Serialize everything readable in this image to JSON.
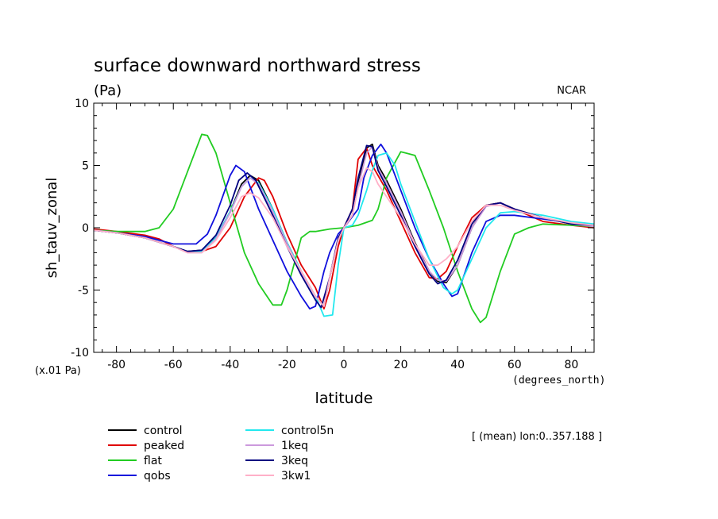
{
  "chart_data": {
    "type": "line",
    "title": "surface downward northward stress",
    "subtitle": "(Pa)",
    "credit": "NCAR",
    "xlabel": "latitude",
    "xunits": "(degrees_north)",
    "ylabel": "sh_tauv_zonal",
    "yunits": "(x.01 Pa)",
    "annotation": "[ (mean) lon:0..357.188 ]",
    "xlim": [
      -88,
      88
    ],
    "ylim": [
      -10,
      10
    ],
    "xticks": [
      -80,
      -60,
      -40,
      -20,
      0,
      20,
      40,
      60,
      80
    ],
    "yticks": [
      -10,
      -5,
      0,
      5,
      10
    ],
    "xtick_labels": [
      "-80",
      "-60",
      "-40",
      "-20",
      "0",
      "20",
      "40",
      "60",
      "80"
    ],
    "ytick_labels": [
      "-10",
      "-5",
      "0",
      "5",
      "10"
    ],
    "series": [
      {
        "name": "control",
        "color": "#000000",
        "x": [
          -88,
          -80,
          -70,
          -60,
          -55,
          -50,
          -45,
          -40,
          -36,
          -33,
          -30,
          -25,
          -20,
          -15,
          -10,
          -7,
          -5,
          -2,
          0,
          3,
          5,
          8,
          10,
          12,
          15,
          20,
          25,
          30,
          33,
          36,
          40,
          45,
          50,
          55,
          60,
          70,
          80,
          88
        ],
        "y": [
          -0.2,
          -0.4,
          -0.8,
          -1.5,
          -1.9,
          -1.8,
          -0.8,
          1.3,
          3.5,
          4.2,
          3.8,
          1.5,
          -1.2,
          -3.5,
          -5.5,
          -6.3,
          -4,
          -1,
          0,
          1,
          3.5,
          6.4,
          6.7,
          5,
          3.8,
          1.5,
          -1.2,
          -3.5,
          -4.3,
          -4.4,
          -3,
          0,
          1.8,
          2,
          1.5,
          0.8,
          0.3,
          0.2
        ]
      },
      {
        "name": "peaked",
        "color": "#e00000",
        "x": [
          -88,
          -80,
          -70,
          -65,
          -60,
          -55,
          -50,
          -45,
          -40,
          -35,
          -30,
          -28,
          -25,
          -20,
          -15,
          -10,
          -7,
          -5,
          -2,
          0,
          3,
          5,
          8,
          10,
          15,
          20,
          25,
          30,
          33,
          36,
          40,
          45,
          50,
          55,
          60,
          70,
          80,
          88
        ],
        "y": [
          -0.1,
          -0.3,
          -0.6,
          -0.9,
          -1.5,
          -1.9,
          -1.9,
          -1.5,
          0,
          2.5,
          4,
          3.8,
          2.5,
          -0.5,
          -3,
          -4.8,
          -6.5,
          -5,
          -1.5,
          0,
          1.5,
          5.5,
          6.4,
          5,
          3,
          0.5,
          -2,
          -4,
          -4.1,
          -3.5,
          -1.5,
          0.8,
          1.8,
          2,
          1.5,
          0.5,
          0.2,
          0
        ]
      },
      {
        "name": "flat",
        "color": "#22cc22",
        "x": [
          -88,
          -80,
          -75,
          -70,
          -65,
          -60,
          -55,
          -50,
          -48,
          -45,
          -40,
          -35,
          -30,
          -25,
          -22,
          -20,
          -15,
          -12,
          -10,
          -5,
          0,
          5,
          10,
          12,
          15,
          20,
          25,
          30,
          35,
          40,
          45,
          48,
          50,
          55,
          60,
          65,
          70,
          80,
          88
        ],
        "y": [
          -0.2,
          -0.3,
          -0.3,
          -0.3,
          0,
          1.5,
          4.5,
          7.5,
          7.4,
          6,
          2,
          -2,
          -4.5,
          -6.2,
          -6.2,
          -5,
          -0.8,
          -0.3,
          -0.3,
          -0.1,
          0,
          0.2,
          0.6,
          1.5,
          4,
          6.1,
          5.8,
          3,
          0,
          -3.5,
          -6.5,
          -7.6,
          -7.2,
          -3.5,
          -0.5,
          0,
          0.3,
          0.2,
          0.1
        ]
      },
      {
        "name": "qobs",
        "color": "#1010dd",
        "x": [
          -88,
          -80,
          -70,
          -60,
          -52,
          -48,
          -45,
          -40,
          -38,
          -35,
          -30,
          -25,
          -20,
          -15,
          -12,
          -10,
          -7,
          -5,
          -2,
          0,
          5,
          7,
          10,
          13,
          15,
          20,
          25,
          30,
          35,
          38,
          40,
          45,
          50,
          55,
          60,
          70,
          80,
          88
        ],
        "y": [
          -0.2,
          -0.4,
          -0.7,
          -1.3,
          -1.3,
          -0.5,
          1,
          4.2,
          5,
          4.5,
          1.5,
          -1,
          -3.5,
          -5.5,
          -6.5,
          -6.3,
          -3.5,
          -2,
          -0.5,
          0,
          1.5,
          4,
          5.8,
          6.7,
          6,
          3,
          0,
          -2.5,
          -4.5,
          -5.5,
          -5.3,
          -2,
          0.5,
          1,
          1,
          0.7,
          0.4,
          0.2
        ]
      },
      {
        "name": "control5n",
        "color": "#22e8ee",
        "x": [
          -88,
          -80,
          -70,
          -60,
          -55,
          -50,
          -45,
          -40,
          -36,
          -33,
          -30,
          -25,
          -20,
          -15,
          -10,
          -7,
          -4,
          -2,
          0,
          3,
          5,
          8,
          10,
          12,
          15,
          18,
          20,
          25,
          30,
          35,
          38,
          40,
          45,
          50,
          55,
          60,
          70,
          80,
          88
        ],
        "y": [
          -0.2,
          -0.4,
          -0.8,
          -1.5,
          -1.9,
          -1.9,
          -0.8,
          1.3,
          3.3,
          4,
          3.6,
          1.5,
          -1.2,
          -3.5,
          -5.5,
          -7.1,
          -7,
          -3,
          0,
          0.2,
          1,
          3,
          4.6,
          5.8,
          6,
          5,
          3.5,
          0.5,
          -2.5,
          -4.8,
          -5.3,
          -5,
          -2.5,
          0,
          1.2,
          1.3,
          1,
          0.5,
          0.3
        ]
      },
      {
        "name": "1keq",
        "color": "#cc99dd",
        "x": [
          -88,
          -80,
          -70,
          -60,
          -55,
          -50,
          -45,
          -40,
          -36,
          -33,
          -30,
          -25,
          -20,
          -15,
          -10,
          -7,
          -5,
          -2,
          0,
          3,
          5,
          8,
          10,
          12,
          15,
          20,
          25,
          30,
          33,
          36,
          40,
          45,
          50,
          55,
          60,
          70,
          80,
          88
        ],
        "y": [
          -0.2,
          -0.4,
          -0.8,
          -1.5,
          -2,
          -2,
          -0.9,
          1.2,
          3.3,
          4,
          3.5,
          1.3,
          -1.3,
          -3.6,
          -5.5,
          -6.3,
          -4,
          -1,
          0,
          1,
          3.3,
          6,
          6.5,
          4.8,
          3.6,
          1.3,
          -1.3,
          -3.5,
          -4.2,
          -4.3,
          -3,
          0,
          1.7,
          2,
          1.5,
          0.8,
          0.3,
          0.1
        ]
      },
      {
        "name": "3keq",
        "color": "#000080",
        "x": [
          -88,
          -80,
          -70,
          -60,
          -55,
          -50,
          -45,
          -40,
          -37,
          -34,
          -31,
          -25,
          -20,
          -15,
          -10,
          -8,
          -5,
          -2,
          0,
          3,
          5,
          8,
          10,
          12,
          15,
          20,
          25,
          30,
          33,
          36,
          40,
          45,
          50,
          55,
          60,
          70,
          80,
          88
        ],
        "y": [
          -0.2,
          -0.4,
          -0.8,
          -1.5,
          -1.9,
          -1.8,
          -0.6,
          1.8,
          3.8,
          4.4,
          3.8,
          1,
          -1.5,
          -3.8,
          -5.8,
          -6.4,
          -4,
          -0.8,
          0,
          1.5,
          4,
          6.6,
          6.5,
          4.6,
          3.3,
          1,
          -1.5,
          -3.7,
          -4.5,
          -4.2,
          -2.6,
          0.3,
          1.8,
          2,
          1.5,
          0.8,
          0.3,
          0.2
        ]
      },
      {
        "name": "3kw1",
        "color": "#ffb0c8",
        "x": [
          -88,
          -80,
          -70,
          -60,
          -55,
          -50,
          -45,
          -40,
          -36,
          -33,
          -30,
          -25,
          -20,
          -15,
          -10,
          -7,
          -5,
          -2,
          0,
          3,
          5,
          8,
          10,
          12,
          15,
          20,
          25,
          30,
          33,
          36,
          40,
          45,
          50,
          55,
          60,
          70,
          80,
          88
        ],
        "y": [
          -0.2,
          -0.4,
          -0.8,
          -1.5,
          -2,
          -2,
          -1,
          0.8,
          2.5,
          2.8,
          2.4,
          0.8,
          -1.5,
          -3.5,
          -5.5,
          -6.3,
          -4,
          -1,
          0,
          1,
          3.2,
          4.8,
          4.5,
          3.5,
          2.5,
          0.8,
          -1.3,
          -3,
          -3,
          -2.5,
          -1.5,
          0.5,
          1.8,
          1.8,
          1.4,
          0.8,
          0.4,
          0.2
        ]
      }
    ]
  }
}
